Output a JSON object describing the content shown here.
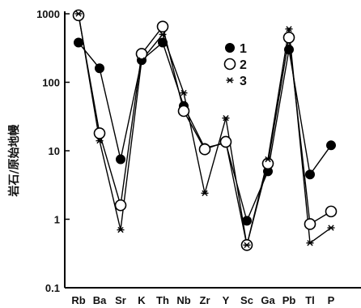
{
  "chart_data": {
    "type": "line",
    "ylabel": "岩石/原始地幔",
    "yscale": "log",
    "ylim": [
      0.1,
      1000
    ],
    "y_ticks": [
      "0.1",
      "1",
      "10",
      "100",
      "1000"
    ],
    "categories": [
      "Rb",
      "Ba",
      "Sr",
      "K",
      "Th",
      "Nb",
      "Zr",
      "Y",
      "Sc",
      "Ga",
      "Pb",
      "Tl",
      "P"
    ],
    "legend_position": "top-right",
    "series": [
      {
        "name": "1",
        "marker": "filled-circle",
        "values": [
          380,
          160,
          7.5,
          210,
          380,
          45,
          11,
          13,
          0.95,
          5,
          300,
          4.5,
          12
        ]
      },
      {
        "name": "2",
        "marker": "open-circle",
        "values": [
          950,
          18,
          1.6,
          260,
          650,
          38,
          10.5,
          13.5,
          0.42,
          6.5,
          450,
          0.85,
          1.3
        ]
      },
      {
        "name": "3",
        "marker": "star",
        "values": [
          1000,
          14,
          0.7,
          210,
          500,
          70,
          2.4,
          30,
          0.42,
          7.5,
          600,
          0.45,
          0.75
        ]
      }
    ]
  }
}
